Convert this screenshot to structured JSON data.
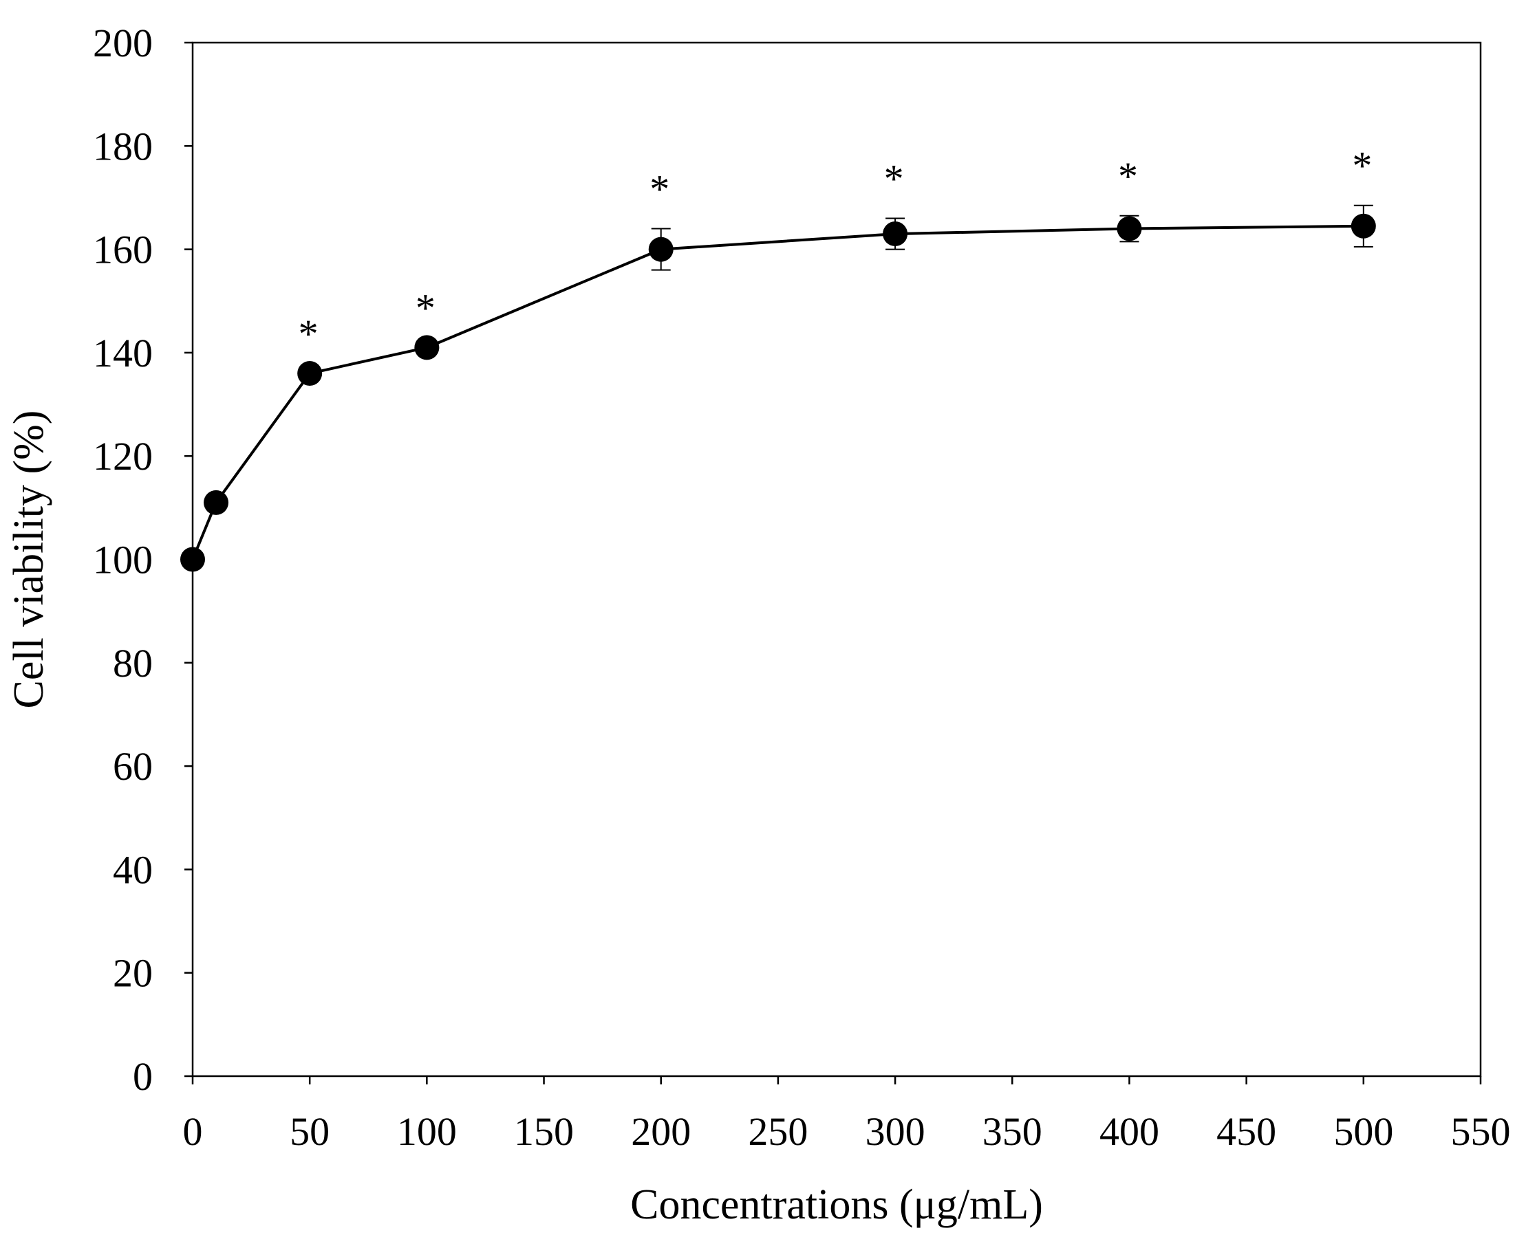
{
  "chart_data": {
    "type": "line",
    "title": "",
    "xlabel": "Concentrations (μg/mL)",
    "ylabel": "Cell viability (%)",
    "xlim": [
      0,
      550
    ],
    "ylim": [
      0,
      200
    ],
    "x_ticks": [
      0,
      50,
      100,
      150,
      200,
      250,
      300,
      350,
      400,
      450,
      500,
      550
    ],
    "y_ticks": [
      0,
      20,
      40,
      60,
      80,
      100,
      120,
      140,
      160,
      180,
      200
    ],
    "grid": false,
    "legend": "none",
    "series": [
      {
        "color": "#000000",
        "marker": "filled-circle",
        "points": [
          {
            "x": 0,
            "y": 100,
            "err": 0,
            "label": ""
          },
          {
            "x": 10,
            "y": 111,
            "err": 0,
            "label": ""
          },
          {
            "x": 50,
            "y": 136,
            "err": 0,
            "label": "*"
          },
          {
            "x": 100,
            "y": 141,
            "err": 0,
            "label": "*"
          },
          {
            "x": 200,
            "y": 160,
            "err": 4,
            "label": "*"
          },
          {
            "x": 300,
            "y": 163,
            "err": 3,
            "label": "*"
          },
          {
            "x": 400,
            "y": 164,
            "err": 2.5,
            "label": "*"
          },
          {
            "x": 500,
            "y": 164.5,
            "err": 4,
            "label": "*"
          }
        ]
      }
    ]
  }
}
